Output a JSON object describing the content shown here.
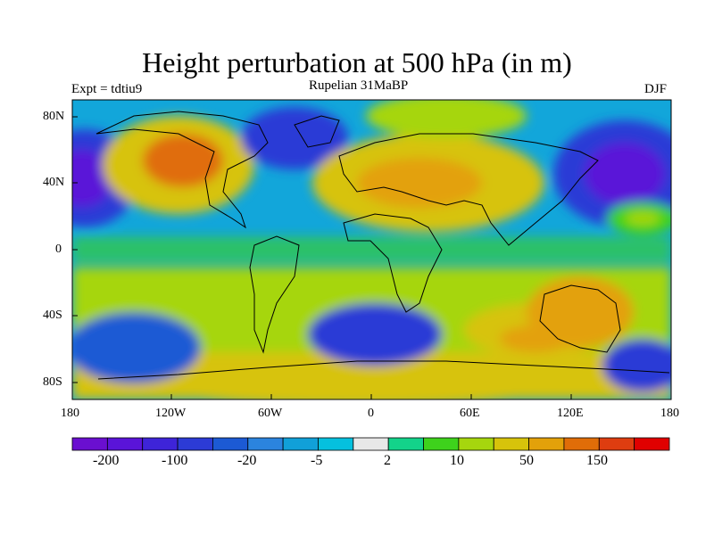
{
  "title": "Height perturbation at 500 hPa (in m)",
  "subtitle": "Rupelian  31MaBP",
  "experiment": "Expt = tdtiu9",
  "season": "DJF",
  "lat_labels": [
    "80N",
    "40N",
    "0",
    "40S",
    "80S"
  ],
  "lon_labels": [
    "180",
    "120W",
    "60W",
    "0",
    "60E",
    "120E",
    "180"
  ],
  "colorbar": {
    "colors": [
      "#6a0fd0",
      "#5a14d8",
      "#3e24d8",
      "#2c3bd6",
      "#1c5ad4",
      "#2b84de",
      "#11a0d8",
      "#05c0de",
      "#e8e8e8",
      "#13d38a",
      "#3ed21c",
      "#a6d60e",
      "#d7c30b",
      "#e3a10a",
      "#e06d08",
      "#de3d10",
      "#e00000"
    ],
    "labels": [
      "-200",
      "-100",
      "-20",
      "-5",
      "2",
      "10",
      "50",
      "150"
    ]
  }
}
